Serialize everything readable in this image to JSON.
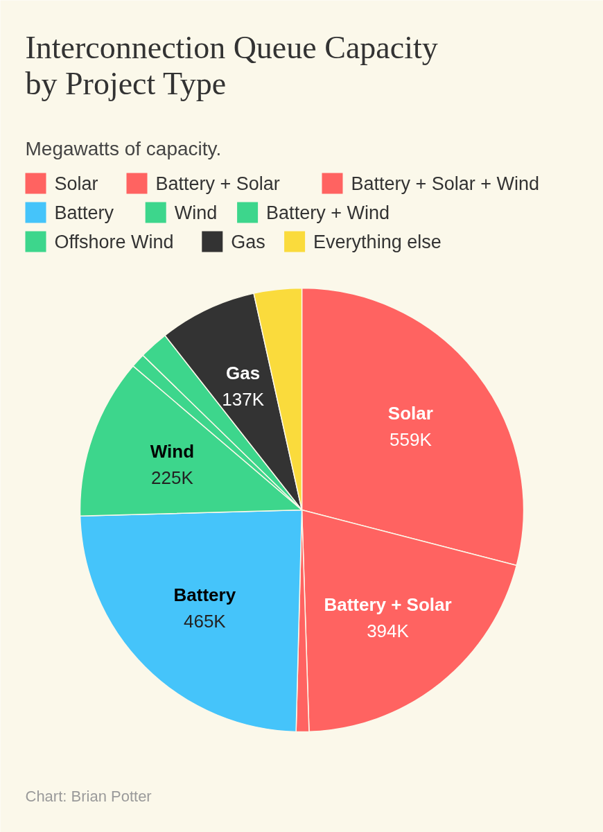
{
  "chart_data": {
    "type": "pie",
    "title": "Interconnection Queue Capacity by Project Type",
    "subtitle": "Megawatts of capacity.",
    "categories": [
      "Solar",
      "Battery + Solar",
      "Battery + Solar + Wind",
      "Battery",
      "Wind",
      "Battery + Wind",
      "Offshore Wind",
      "Gas",
      "Everything else"
    ],
    "values": [
      559,
      394,
      18,
      465,
      225,
      20,
      41,
      137,
      67
    ],
    "value_labels": [
      "559K",
      "394K",
      null,
      "465K",
      "225K",
      null,
      null,
      "137K",
      null
    ],
    "colors": [
      "#ff6361",
      "#ff6361",
      "#ff6361",
      "#45c4fa",
      "#3dd68c",
      "#3dd68c",
      "#3dd68c",
      "#333333",
      "#fadb3c"
    ],
    "legend": "top",
    "annotations": [
      "Chart: Brian Potter"
    ]
  }
}
